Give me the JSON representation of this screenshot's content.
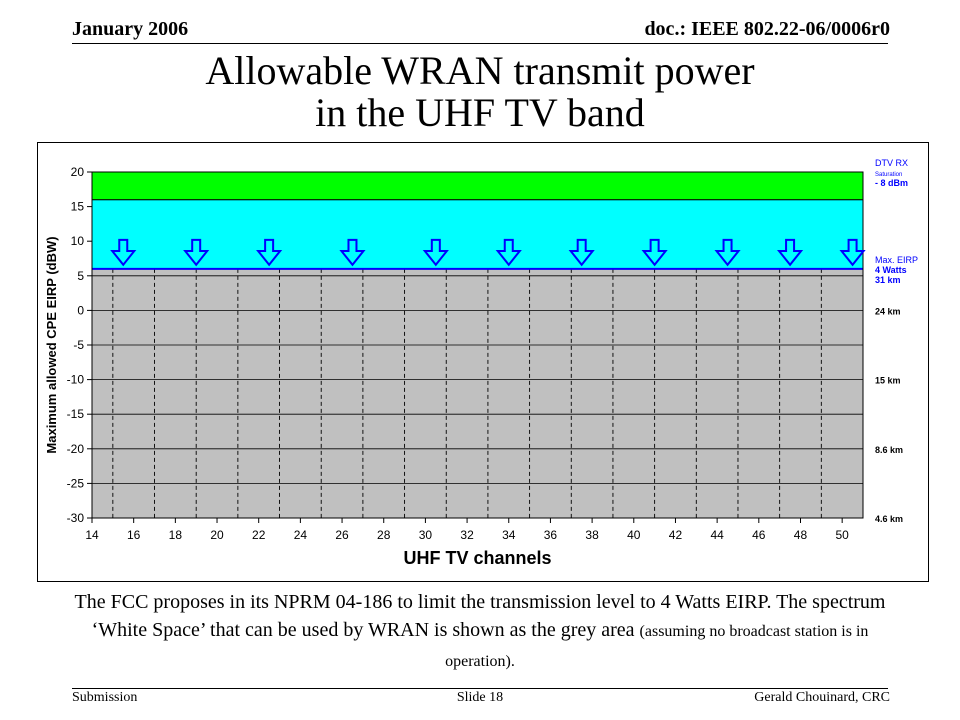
{
  "header": {
    "left": "January 2006",
    "right": "doc.: IEEE 802.22-06/0006r0"
  },
  "title": {
    "line1": "Allowable WRAN transmit power",
    "line2": "in the UHF TV band"
  },
  "caption": {
    "main": "The FCC proposes in its NPRM 04-186 to limit the transmission level to 4 Watts EIRP.  The spectrum ‘White Space’ that can be used by WRAN is shown as the grey area",
    "small": "(assuming no broadcast station is in operation)."
  },
  "footer": {
    "left": "Submission",
    "center": "Slide 18",
    "right": "Gerald Chouinard, CRC"
  },
  "colors": {
    "grey_area": "#c0c0c0",
    "cyan_band": "#00ffff",
    "green_band": "#00ff00",
    "blue": "#0000ff",
    "text_blue": "#0000ff"
  },
  "chart_data": {
    "type": "area",
    "xlabel": "UHF TV channels",
    "ylabel": "Maximum allowed CPE EIRP (dBW)",
    "xlim": [
      14,
      51
    ],
    "ylim": [
      -30,
      20
    ],
    "xticks": [
      14,
      16,
      18,
      20,
      22,
      24,
      26,
      28,
      30,
      32,
      34,
      36,
      38,
      40,
      42,
      44,
      46,
      48,
      50
    ],
    "yticks": [
      20,
      15,
      10,
      5,
      0,
      -5,
      -10,
      -15,
      -20,
      -25,
      -30
    ],
    "channel_gridlines": [
      15,
      17,
      19,
      21,
      23,
      25,
      27,
      29,
      31,
      33,
      35,
      37,
      39,
      41,
      43,
      45,
      47,
      49,
      51
    ],
    "grid": true,
    "bands": [
      {
        "from": -30,
        "to": 6,
        "color": "#c0c0c0"
      },
      {
        "from": 6,
        "to": 16,
        "color": "#00ffff"
      },
      {
        "from": 16,
        "to": 20,
        "color": "#00ff00"
      }
    ],
    "max_eirp_dbw": 6,
    "arrow_channels": [
      15.5,
      19,
      22.5,
      26.5,
      30.5,
      34,
      37.5,
      41,
      44.5,
      47.5,
      50.5
    ],
    "right_labels": [
      {
        "y": 20,
        "lines": [
          "DTV RX",
          "Saturation",
          "- 8 dBm"
        ],
        "color": "#0000ff"
      },
      {
        "y": 6,
        "lines": [
          "Max. EIRP",
          "4 Watts",
          "31 km"
        ],
        "color": "#0000ff"
      },
      {
        "y": 0,
        "lines": [
          "24 km"
        ],
        "color": "#000000"
      },
      {
        "y": -10,
        "lines": [
          "15 km"
        ],
        "color": "#000000"
      },
      {
        "y": -20,
        "lines": [
          "8.6 km"
        ],
        "color": "#000000"
      },
      {
        "y": -30,
        "lines": [
          "4.6 km"
        ],
        "color": "#000000"
      }
    ]
  }
}
